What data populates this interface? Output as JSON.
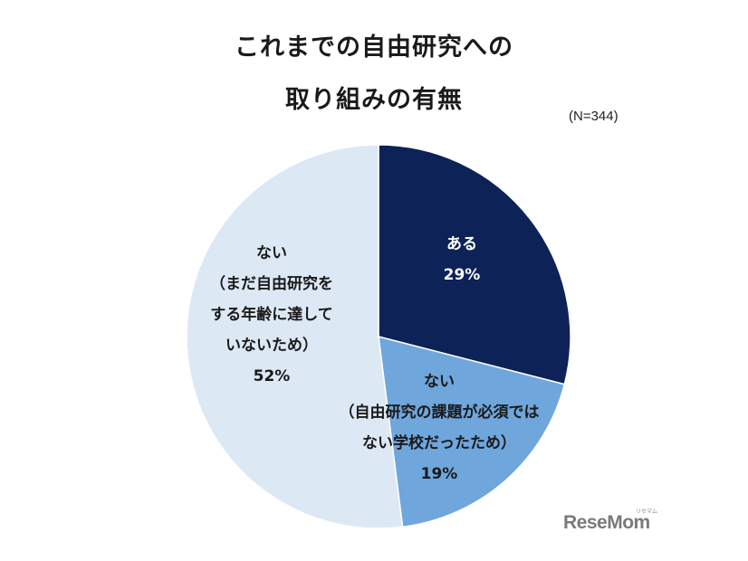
{
  "chart_data": {
    "type": "pie",
    "title_lines": [
      "これまでの自由研究への",
      "取り組みの有無"
    ],
    "note": "(N=344)",
    "slices": [
      {
        "lines": [
          "ある"
        ],
        "value": 29,
        "value_label": "29%",
        "color": "#0d2257",
        "text_color": "#ffffff"
      },
      {
        "lines": [
          "ない",
          "（自由研究の課題が必須では",
          "ない学校だったため）"
        ],
        "value": 19,
        "value_label": "19%",
        "color": "#6fa6dc",
        "text_color": "#1a1a1a"
      },
      {
        "lines": [
          "ない",
          "（まだ自由研究を",
          "する年齢に達して",
          "いないため）"
        ],
        "value": 52,
        "value_label": "52%",
        "color": "#dde8f5",
        "text_color": "#1a1a1a"
      }
    ]
  },
  "watermark": {
    "logo": "ReseMom",
    "sub": "リセマム"
  }
}
